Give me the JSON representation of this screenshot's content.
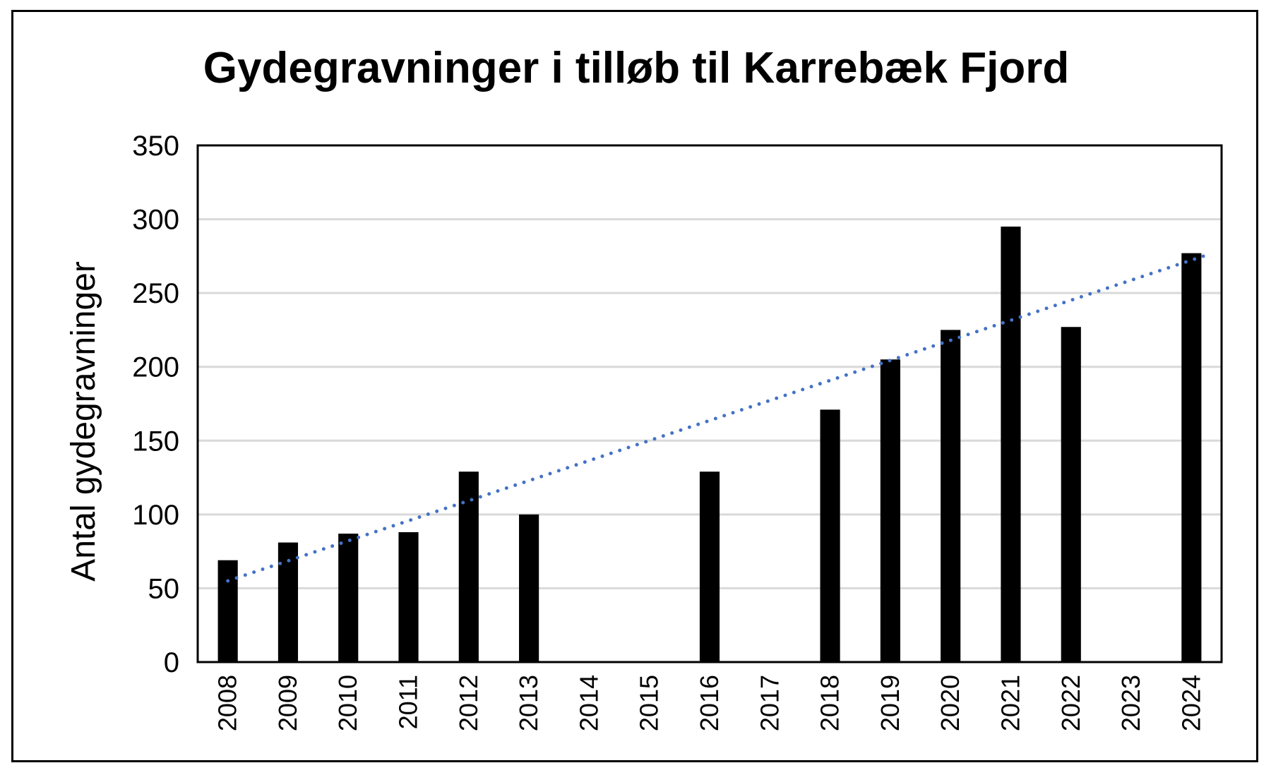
{
  "chart_data": {
    "type": "bar",
    "title": "Gydegravninger i tilløb til Karrebæk Fjord",
    "xlabel": "",
    "ylabel": "Antal gydegravninger",
    "ylim": [
      0,
      350
    ],
    "yticks": [
      "0",
      "50",
      "100",
      "150",
      "200",
      "250",
      "300",
      "350"
    ],
    "grid": true,
    "legend": "none",
    "categories": [
      "2008",
      "2009",
      "2010",
      "2011",
      "2012",
      "2013",
      "2014",
      "2015",
      "2016",
      "2017",
      "2018",
      "2019",
      "2020",
      "2021",
      "2022",
      "2023",
      "2024"
    ],
    "series": [
      {
        "values": [
          69,
          81,
          87,
          88,
          129,
          100,
          null,
          null,
          129,
          null,
          171,
          205,
          225,
          295,
          227,
          null,
          277
        ],
        "color": "#000000"
      }
    ],
    "trendline": {
      "type": "linear",
      "style": "dotted",
      "color": "#4472C4",
      "start_value": 55,
      "end_value": 275
    }
  }
}
